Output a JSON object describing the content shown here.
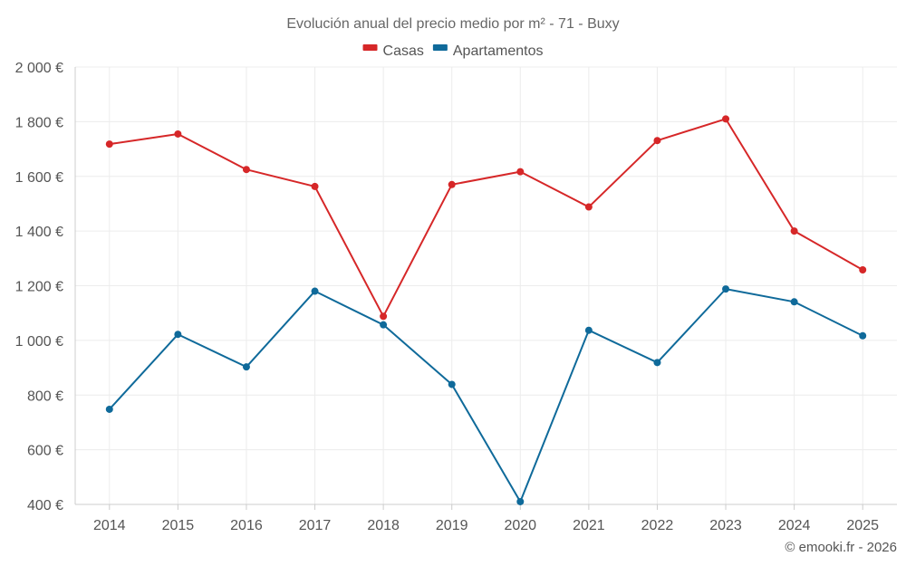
{
  "chart_data": {
    "type": "line",
    "title": "Evolución anual del precio medio por m² - 71 - Buxy",
    "categories": [
      "2014",
      "2015",
      "2016",
      "2017",
      "2018",
      "2019",
      "2020",
      "2021",
      "2022",
      "2023",
      "2024",
      "2025"
    ],
    "series": [
      {
        "name": "Casas",
        "color": "#d62728",
        "values": [
          1718,
          1755,
          1625,
          1563,
          1088,
          1570,
          1617,
          1488,
          1731,
          1810,
          1400,
          1258
        ]
      },
      {
        "name": "Apartamentos",
        "color": "#0f6a9a",
        "values": [
          748,
          1022,
          903,
          1180,
          1057,
          839,
          410,
          1037,
          919,
          1188,
          1141,
          1017
        ]
      }
    ],
    "ylim": [
      400,
      2000
    ],
    "yticks": [
      400,
      600,
      800,
      1000,
      1200,
      1400,
      1600,
      1800,
      2000
    ],
    "ytick_labels": [
      "400 €",
      "600 €",
      "800 €",
      "1 000 €",
      "1 200 €",
      "1 400 €",
      "1 600 €",
      "1 800 €",
      "2 000 €"
    ],
    "xlabel": "",
    "ylabel": "",
    "grid": true,
    "legend_position": "top-center"
  },
  "credit": "© emooki.fr - 2026"
}
